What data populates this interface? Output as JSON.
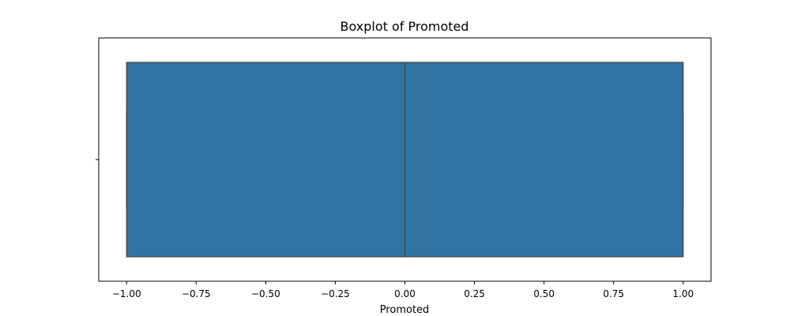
{
  "chart_data": {
    "type": "boxplot",
    "title": "Boxplot of Promoted",
    "xlabel": "Promoted",
    "ylabel": "",
    "orientation": "horizontal",
    "xlim": [
      -1.1,
      1.1
    ],
    "x_ticks": [
      -1.0,
      -0.75,
      -0.5,
      -0.25,
      0.0,
      0.25,
      0.5,
      0.75,
      1.0
    ],
    "x_tick_labels": [
      "−1.00",
      "−0.75",
      "−0.50",
      "−0.25",
      "0.00",
      "0.25",
      "0.50",
      "0.75",
      "1.00"
    ],
    "grid": false,
    "box": {
      "min": -1.0,
      "q1": -1.0,
      "median": 0.0,
      "q3": 1.0,
      "max": 1.0,
      "fill_color": "#3274a1",
      "edge_color": "#3f3f3f"
    }
  }
}
